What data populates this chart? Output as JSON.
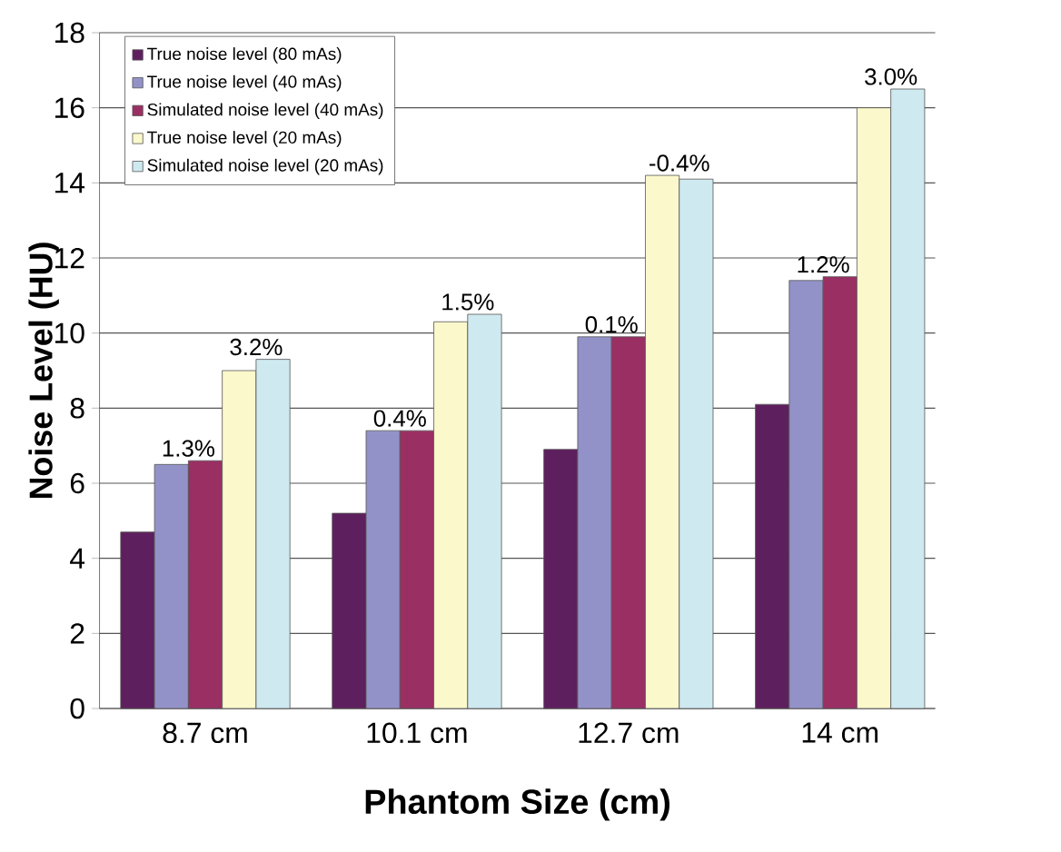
{
  "chart_data": {
    "type": "bar",
    "xlabel": "Phantom Size (cm)",
    "ylabel": "Noise Level (HU)",
    "categories": [
      "8.7 cm",
      "10.1 cm",
      "12.7 cm",
      "14 cm"
    ],
    "series": [
      {
        "name": "True noise level (80 mAs)",
        "color": "#5e1f5e",
        "values": [
          4.7,
          5.2,
          6.9,
          8.1
        ]
      },
      {
        "name": "True noise level (40 mAs)",
        "color": "#9392c8",
        "values": [
          6.5,
          7.4,
          9.9,
          11.4
        ]
      },
      {
        "name": "Simulated noise level (40 mAs)",
        "color": "#9a2f63",
        "values": [
          6.6,
          7.4,
          9.9,
          11.5
        ]
      },
      {
        "name": "True noise level (20 mAs)",
        "color": "#fbf8cc",
        "values": [
          9.0,
          10.3,
          14.2,
          16.0
        ]
      },
      {
        "name": "Simulated noise level (20 mAs)",
        "color": "#cfe9f0",
        "values": [
          9.3,
          10.5,
          14.1,
          16.5
        ]
      }
    ],
    "ylim": [
      0,
      18
    ],
    "yticks": [
      0,
      2,
      4,
      6,
      8,
      10,
      12,
      14,
      16,
      18
    ],
    "grid": "y",
    "legend": "top left",
    "annotations": [
      "1.3%",
      "3.2%",
      "0.4%",
      "1.5%",
      "0.1%",
      "-0.4%",
      "1.2%",
      "3.0%"
    ]
  }
}
